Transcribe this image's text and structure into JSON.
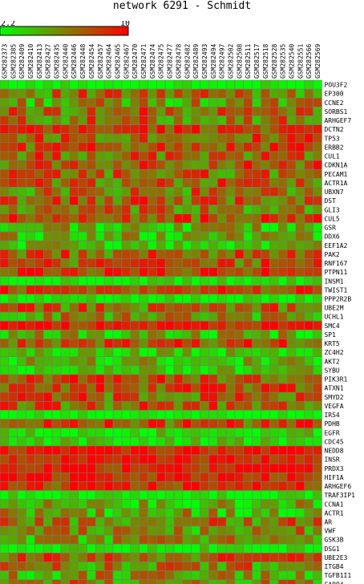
{
  "chart_data": {
    "type": "heatmap",
    "title": "network 6291 - Schmidt",
    "scale": {
      "min": 2.2,
      "max": 10,
      "min_label": "2.2",
      "max_label": "10",
      "low_color": "#00ff00",
      "high_color": "#ff0000",
      "mid_color": "#808000"
    },
    "columns": [
      "GSM282373",
      "GSM282385",
      "GSM282409",
      "GSM282410",
      "GSM282413",
      "GSM282427",
      "GSM282435",
      "GSM282440",
      "GSM282446",
      "GSM282448",
      "GSM282454",
      "GSM282457",
      "GSM282464",
      "GSM282465",
      "GSM282467",
      "GSM282470",
      "GSM282471",
      "GSM282474",
      "GSM282475",
      "GSM282477",
      "GSM282478",
      "GSM282482",
      "GSM282489",
      "GSM282493",
      "GSM282494",
      "GSM282497",
      "GSM282502",
      "GSM282508",
      "GSM282511",
      "GSM282517",
      "GSM282518",
      "GSM282528",
      "GSM282535",
      "GSM282540",
      "GSM282551",
      "GSM282566",
      "GSM282569"
    ],
    "rows": [
      "POU3F2",
      "EP300",
      "CCNE2",
      "SORBS1",
      "ARHGEF7",
      "DCTN2",
      "TP53",
      "ERBB2",
      "CUL1",
      "CDKN1A",
      "PECAM1",
      "ACTR1A",
      "UBXN7",
      "DST",
      "GLI3",
      "CUL5",
      "GSR",
      "DDX6",
      "EEF1A2",
      "PAK2",
      "RNF167",
      "PTPN11",
      "INSM1",
      "TWIST1",
      "PPP2R2B",
      "UBE2M",
      "UCHL1",
      "SMC4",
      "SP1",
      "KRT5",
      "ZC4H2",
      "AKT2",
      "SYBU",
      "PIK3R1",
      "ATXN1",
      "SMYD2",
      "VEGFA",
      "IRS4",
      "PDHB",
      "EGFR",
      "CDC45",
      "NEDD8",
      "INSR",
      "PRDX3",
      "HIF1A",
      "ARHGEF6",
      "TRAF3IP1",
      "CCNA1",
      "ACTR1",
      "AR",
      "VWF",
      "GSK3B",
      "DSG1",
      "UBE2E3",
      "ITGB4",
      "TGFB1I1",
      "FABP4"
    ],
    "row_levels": [
      0.02,
      0.55,
      0.4,
      0.6,
      0.55,
      0.78,
      0.65,
      0.72,
      0.62,
      0.68,
      0.6,
      0.62,
      0.55,
      0.65,
      0.5,
      0.7,
      0.28,
      0.3,
      0.22,
      0.62,
      0.68,
      0.8,
      0.05,
      0.72,
      0.05,
      0.6,
      0.45,
      0.85,
      0.3,
      0.72,
      0.18,
      0.25,
      0.2,
      0.7,
      0.72,
      0.65,
      0.62,
      0.02,
      0.7,
      0.15,
      0.12,
      0.9,
      0.9,
      0.88,
      0.85,
      0.8,
      0.05,
      0.3,
      0.35,
      0.55,
      0.45,
      0.4,
      0.08,
      0.65,
      0.5,
      0.4,
      0.5
    ]
  }
}
